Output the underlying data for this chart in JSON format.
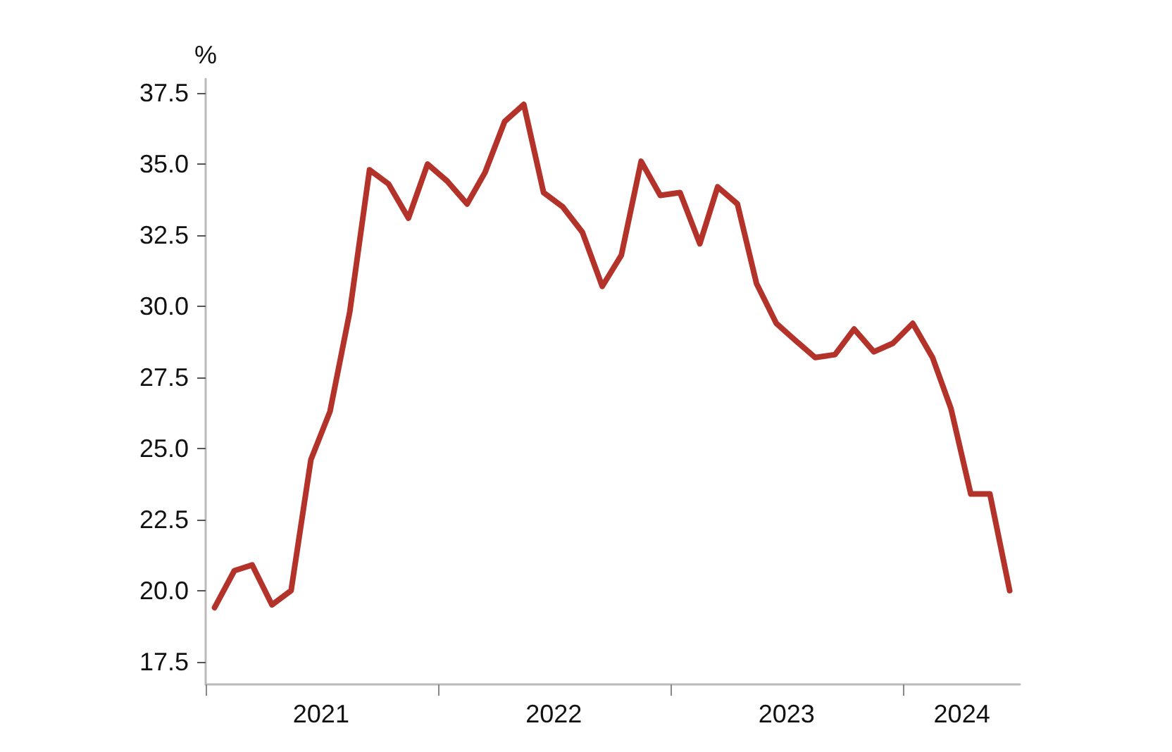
{
  "chart_data": {
    "type": "line",
    "ylabel": "%",
    "x": [
      "2021-01-15",
      "2021-02-15",
      "2021-03-15",
      "2021-04-15",
      "2021-05-15",
      "2021-06-15",
      "2021-07-15",
      "2021-08-15",
      "2021-09-15",
      "2021-10-15",
      "2021-11-15",
      "2021-12-15",
      "2022-01-15",
      "2022-02-15",
      "2022-03-15",
      "2022-04-15",
      "2022-05-15",
      "2022-06-15",
      "2022-07-15",
      "2022-08-15",
      "2022-09-15",
      "2022-10-15",
      "2022-11-15",
      "2022-12-15",
      "2023-01-15",
      "2023-02-15",
      "2023-03-15",
      "2023-04-15",
      "2023-05-15",
      "2023-06-15",
      "2023-07-15",
      "2023-08-15",
      "2023-09-15",
      "2023-10-15",
      "2023-11-15",
      "2023-12-15",
      "2024-01-15",
      "2024-02-15",
      "2024-03-15",
      "2024-04-15",
      "2024-05-15",
      "2024-06-15"
    ],
    "series": [
      {
        "color": "#b3322a",
        "values": [
          19.4,
          20.7,
          20.9,
          19.5,
          20.0,
          24.6,
          26.3,
          29.8,
          34.8,
          34.3,
          33.1,
          35.0,
          34.4,
          33.6,
          34.7,
          36.5,
          37.1,
          34.0,
          33.5,
          32.6,
          30.7,
          31.8,
          35.1,
          33.9,
          34.0,
          32.2,
          34.2,
          33.6,
          30.8,
          29.4,
          28.8,
          28.2,
          28.3,
          29.2,
          28.4,
          28.7,
          29.4,
          28.2,
          26.4,
          23.4,
          23.4,
          20.0
        ]
      }
    ],
    "xlim": [
      "2021-01-01",
      "2024-07-01"
    ],
    "xticks": [
      {
        "value": "2021-01-01",
        "label": null
      },
      {
        "value": "2022-01-01",
        "label": null
      },
      {
        "value": "2023-01-01",
        "label": null
      },
      {
        "value": "2024-01-01",
        "label": null
      },
      {
        "value": "2021-07-01",
        "label": "2021"
      },
      {
        "value": "2022-07-01",
        "label": "2022"
      },
      {
        "value": "2023-07-01",
        "label": "2023"
      },
      {
        "value": "2024-04-01",
        "label": "2024"
      }
    ],
    "ylim": [
      16.7,
      38
    ],
    "yticks": [
      {
        "value": 17.5,
        "label": "17.5"
      },
      {
        "value": 20,
        "label": "20.0"
      },
      {
        "value": 22.5,
        "label": "22.5"
      },
      {
        "value": 25,
        "label": "25.0"
      },
      {
        "value": 27.5,
        "label": "27.5"
      },
      {
        "value": 30,
        "label": "30.0"
      },
      {
        "value": 32.5,
        "label": "32.5"
      },
      {
        "value": 35,
        "label": "35.0"
      },
      {
        "value": 37.5,
        "label": "37.5"
      }
    ],
    "grid": false,
    "marker": "none",
    "line_style": "solid"
  }
}
